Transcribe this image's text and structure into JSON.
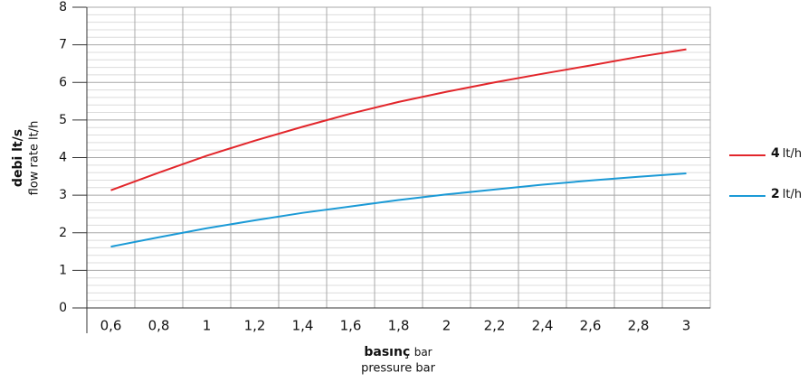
{
  "chart_data": {
    "type": "line",
    "ylabel": "debi lt/s",
    "ylabel2": "flow rate lt/h",
    "xlabel": "basınç",
    "xlabel_unit": "bar",
    "xlabel2": "pressure bar",
    "legend_unit": "lt/h",
    "x": [
      0.6,
      0.8,
      1,
      1.2,
      1.4,
      1.6,
      1.8,
      2,
      2.2,
      2.4,
      2.6,
      2.8,
      3
    ],
    "series": [
      {
        "name": "4",
        "color": "#e2262b",
        "values": [
          3.13,
          3.6,
          4.05,
          4.45,
          4.82,
          5.17,
          5.48,
          5.75,
          6.0,
          6.23,
          6.45,
          6.68,
          6.88
        ]
      },
      {
        "name": "2",
        "color": "#1b9ad6",
        "values": [
          1.63,
          1.88,
          2.12,
          2.33,
          2.53,
          2.7,
          2.87,
          3.02,
          3.15,
          3.28,
          3.39,
          3.49,
          3.58
        ]
      }
    ],
    "xlim": [
      0.5,
      3.1
    ],
    "xticks": [
      {
        "value": 0.6,
        "label": "0,6"
      },
      {
        "value": 0.8,
        "label": "0,8"
      },
      1,
      {
        "value": 1.2,
        "label": "1,2"
      },
      {
        "value": 1.4,
        "label": "1,4"
      },
      {
        "value": 1.6,
        "label": "1,6"
      },
      {
        "value": 1.8,
        "label": "1,8"
      },
      2,
      {
        "value": 2.2,
        "label": "2,2"
      },
      {
        "value": 2.4,
        "label": "2,4"
      },
      {
        "value": 2.6,
        "label": "2,6"
      },
      {
        "value": 2.8,
        "label": "2,8"
      },
      3
    ],
    "ylim": [
      0,
      8
    ],
    "yticks": [
      0,
      1,
      2,
      3,
      4,
      5,
      6,
      7,
      8
    ],
    "grid": true,
    "legend": "right"
  }
}
